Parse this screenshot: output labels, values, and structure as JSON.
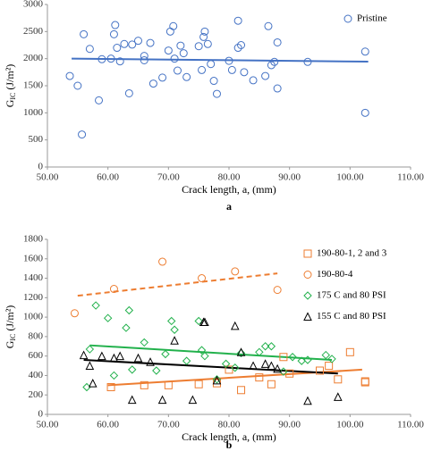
{
  "chart_data": [
    {
      "type": "scatter",
      "caption": "a",
      "xlabel": "Crack length, a, (mm)",
      "ylabel": {
        "main": "G",
        "sub": "IC",
        "unit": "(J/m²)"
      },
      "xlim": [
        50,
        110
      ],
      "xticks": [
        {
          "value": 50,
          "label": "50.00"
        },
        {
          "value": 60,
          "label": "60.00"
        },
        {
          "value": 70,
          "label": "70.00"
        },
        {
          "value": 80,
          "label": "80.00"
        },
        {
          "value": 90,
          "label": "90.00"
        },
        {
          "value": 100,
          "label": "100.00"
        },
        {
          "value": 110,
          "label": "110.00"
        }
      ],
      "ylim": [
        0,
        3000
      ],
      "yticks": [
        0,
        500,
        1000,
        1500,
        2000,
        2500,
        3000
      ],
      "grid": false,
      "legend": "upper right",
      "series": [
        {
          "name": "Pristine",
          "color": "#4472c4",
          "marker": "circle",
          "x": [
            53.7,
            55,
            55.7,
            56,
            57,
            58.5,
            59,
            60.5,
            61,
            61.2,
            61.5,
            62,
            62.7,
            63.5,
            64,
            65,
            66,
            66,
            67,
            67.5,
            69,
            70,
            70.3,
            70.8,
            71,
            71.5,
            72,
            72.5,
            73,
            75,
            75.5,
            75.8,
            76,
            76.5,
            77,
            77.5,
            78,
            80,
            80.5,
            81.5,
            81.5,
            82,
            82.5,
            84,
            86,
            86.5,
            87,
            87.5,
            88,
            88,
            93,
            102.5,
            102.5
          ],
          "values": [
            1680,
            1500,
            600,
            2450,
            2180,
            1230,
            1990,
            2000,
            2450,
            2620,
            2200,
            1950,
            2270,
            1360,
            2260,
            2330,
            2050,
            1970,
            2290,
            1540,
            1650,
            2150,
            2500,
            2600,
            2000,
            1780,
            2240,
            2100,
            1660,
            2230,
            1790,
            2400,
            2500,
            2270,
            1900,
            1590,
            1350,
            1960,
            1790,
            2700,
            2200,
            2250,
            1750,
            1600,
            1680,
            2600,
            1880,
            1940,
            1450,
            2300,
            1940,
            1000,
            2130
          ]
        }
      ],
      "trendlines": [
        {
          "color": "#4472c4",
          "dashed": false,
          "x": [
            54,
            103
          ],
          "values": [
            2000,
            1945
          ]
        }
      ]
    },
    {
      "type": "scatter",
      "caption": "b",
      "xlabel": "Crack length, a, (mm)",
      "ylabel": {
        "main": "G",
        "sub": "IC",
        "unit": "(J/m²)"
      },
      "xlim": [
        50,
        110
      ],
      "xticks": [
        {
          "value": 50,
          "label": "50.00"
        },
        {
          "value": 60,
          "label": "60.00"
        },
        {
          "value": 70,
          "label": "70.00"
        },
        {
          "value": 80,
          "label": "80.00"
        },
        {
          "value": 90,
          "label": "90.00"
        },
        {
          "value": 100,
          "label": "100.00"
        },
        {
          "value": 110,
          "label": "110.00"
        }
      ],
      "ylim": [
        0,
        1800
      ],
      "yticks": [
        0,
        200,
        400,
        600,
        800,
        1000,
        1200,
        1400,
        1600,
        1800
      ],
      "grid": false,
      "legend": "upper right",
      "series": [
        {
          "name": "190-80-1, 2 and 3",
          "color": "#ed7d31",
          "marker": "square",
          "x": [
            60.5,
            66,
            70,
            75,
            78,
            80,
            82,
            85,
            87,
            89,
            90,
            95,
            96.5,
            98,
            100,
            102.5,
            102.5
          ],
          "values": [
            280,
            300,
            300,
            310,
            320,
            460,
            250,
            380,
            310,
            590,
            420,
            450,
            500,
            360,
            640,
            340,
            330
          ]
        },
        {
          "name": "190-80-4",
          "color": "#ed7d31",
          "marker": "circle",
          "x": [
            54.5,
            61,
            69,
            75.5,
            81,
            88
          ],
          "values": [
            1040,
            1290,
            1570,
            1400,
            1470,
            1280
          ]
        },
        {
          "name": "175 C and 80 PSI",
          "color": "#22b14c",
          "marker": "diamond",
          "x": [
            56.5,
            57,
            58,
            60,
            61,
            63,
            63.5,
            64,
            66,
            68,
            69.5,
            70.5,
            71,
            73,
            75,
            75.5,
            76,
            78,
            79.5,
            81,
            82,
            85,
            86,
            87,
            89,
            90.5,
            92,
            93,
            96,
            97
          ],
          "values": [
            280,
            670,
            1120,
            990,
            400,
            890,
            1070,
            460,
            740,
            450,
            620,
            960,
            870,
            550,
            960,
            660,
            600,
            360,
            520,
            480,
            630,
            640,
            700,
            700,
            440,
            590,
            550,
            560,
            610,
            570
          ]
        },
        {
          "name": "155 C and 80 PSI",
          "color": "#000000",
          "marker": "triangle",
          "x": [
            56,
            57,
            57.5,
            59,
            61,
            62,
            64,
            65,
            67,
            69,
            71,
            74,
            75.8,
            76,
            78,
            81,
            82,
            84,
            86,
            87,
            88,
            93,
            98
          ],
          "values": [
            610,
            500,
            320,
            600,
            580,
            600,
            150,
            580,
            540,
            150,
            760,
            150,
            950,
            950,
            350,
            910,
            640,
            500,
            520,
            500,
            470,
            140,
            180
          ]
        }
      ],
      "trendlines": [
        {
          "color": "#ed7d31",
          "dashed": false,
          "x": [
            60,
            102
          ],
          "values": [
            300,
            460
          ]
        },
        {
          "color": "#ed7d31",
          "dashed": true,
          "x": [
            55,
            88
          ],
          "values": [
            1220,
            1450
          ]
        },
        {
          "color": "#22b14c",
          "dashed": false,
          "x": [
            57,
            97
          ],
          "values": [
            710,
            560
          ]
        },
        {
          "color": "#000000",
          "dashed": false,
          "x": [
            56,
            98
          ],
          "values": [
            560,
            420
          ]
        }
      ]
    }
  ]
}
